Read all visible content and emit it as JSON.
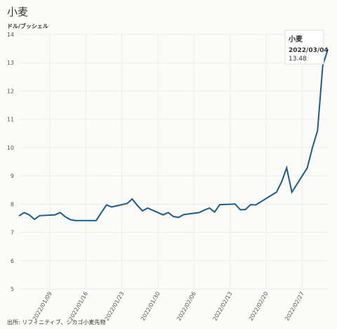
{
  "chart_data": {
    "type": "line",
    "title": "小麦",
    "y_label": "ドル/ブッシェル",
    "source": "出所: リフィニティブ、シカゴ小麦先物",
    "x": [
      "2022/01/03",
      "2022/01/04",
      "2022/01/05",
      "2022/01/06",
      "2022/01/07",
      "2022/01/10",
      "2022/01/11",
      "2022/01/12",
      "2022/01/13",
      "2022/01/14",
      "2022/01/18",
      "2022/01/19",
      "2022/01/20",
      "2022/01/21",
      "2022/01/24",
      "2022/01/25",
      "2022/01/26",
      "2022/01/27",
      "2022/01/28",
      "2022/01/31",
      "2022/02/01",
      "2022/02/02",
      "2022/02/03",
      "2022/02/04",
      "2022/02/07",
      "2022/02/08",
      "2022/02/09",
      "2022/02/10",
      "2022/02/11",
      "2022/02/14",
      "2022/02/15",
      "2022/02/16",
      "2022/02/17",
      "2022/02/18",
      "2022/02/22",
      "2022/02/23",
      "2022/02/24",
      "2022/02/25",
      "2022/02/28",
      "2022/03/01",
      "2022/03/02",
      "2022/03/03",
      "2022/03/04"
    ],
    "series": [
      {
        "name": "小麦",
        "color": "#1f5c8a",
        "values": [
          7.58,
          7.7,
          7.62,
          7.46,
          7.59,
          7.62,
          7.7,
          7.55,
          7.45,
          7.42,
          7.42,
          7.7,
          7.97,
          7.9,
          8.02,
          8.18,
          7.95,
          7.76,
          7.86,
          7.62,
          7.7,
          7.56,
          7.53,
          7.63,
          7.7,
          7.79,
          7.86,
          7.72,
          7.98,
          8.0,
          7.8,
          7.81,
          7.98,
          7.97,
          8.42,
          8.78,
          9.28,
          8.42,
          9.28,
          10.0,
          10.6,
          12.9,
          13.48
        ]
      }
    ],
    "xlim": [
      "2022/01/03",
      "2022/03/04"
    ],
    "xticks": [
      "2022/01/09",
      "2022/01/16",
      "2022/01/23",
      "2022/01/30",
      "2022/02/06",
      "2022/02/13",
      "2022/02/20",
      "2022/02/27"
    ],
    "ylim": [
      5,
      14
    ],
    "yticks": [
      5,
      6,
      7,
      8,
      9,
      10,
      11,
      12,
      13,
      14
    ],
    "grid": true
  }
}
